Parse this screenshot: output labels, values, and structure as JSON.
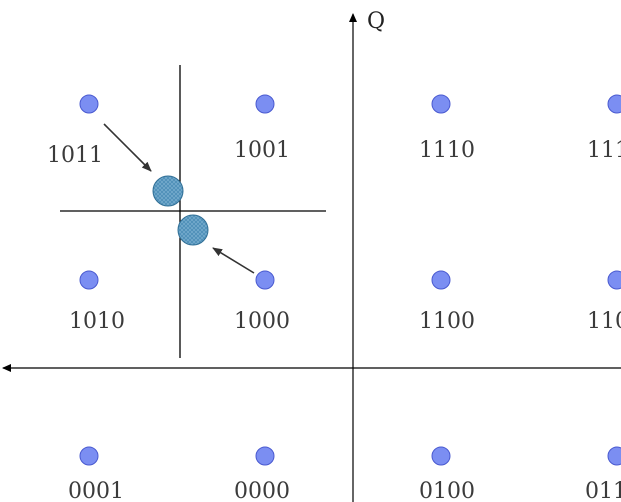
{
  "axis": {
    "q_label": "Q"
  },
  "colors": {
    "point_fill": "#7b8ef2",
    "point_stroke": "#4a5ad0",
    "received_fill": "#4f8fb8",
    "received_stroke": "#2f6e95",
    "axis": "#000000",
    "arrow": "#333333",
    "text": "#3b3b3b"
  },
  "constellation": {
    "points": [
      {
        "label": "1011"
      },
      {
        "label": "1001"
      },
      {
        "label": "1110"
      },
      {
        "label": "111"
      },
      {
        "label": "1010"
      },
      {
        "label": "1000"
      },
      {
        "label": "1100"
      },
      {
        "label": "110"
      },
      {
        "label": "0001"
      },
      {
        "label": "0000"
      },
      {
        "label": "0100"
      },
      {
        "label": "011"
      }
    ],
    "received_samples": 2,
    "error_arrows": 2
  }
}
